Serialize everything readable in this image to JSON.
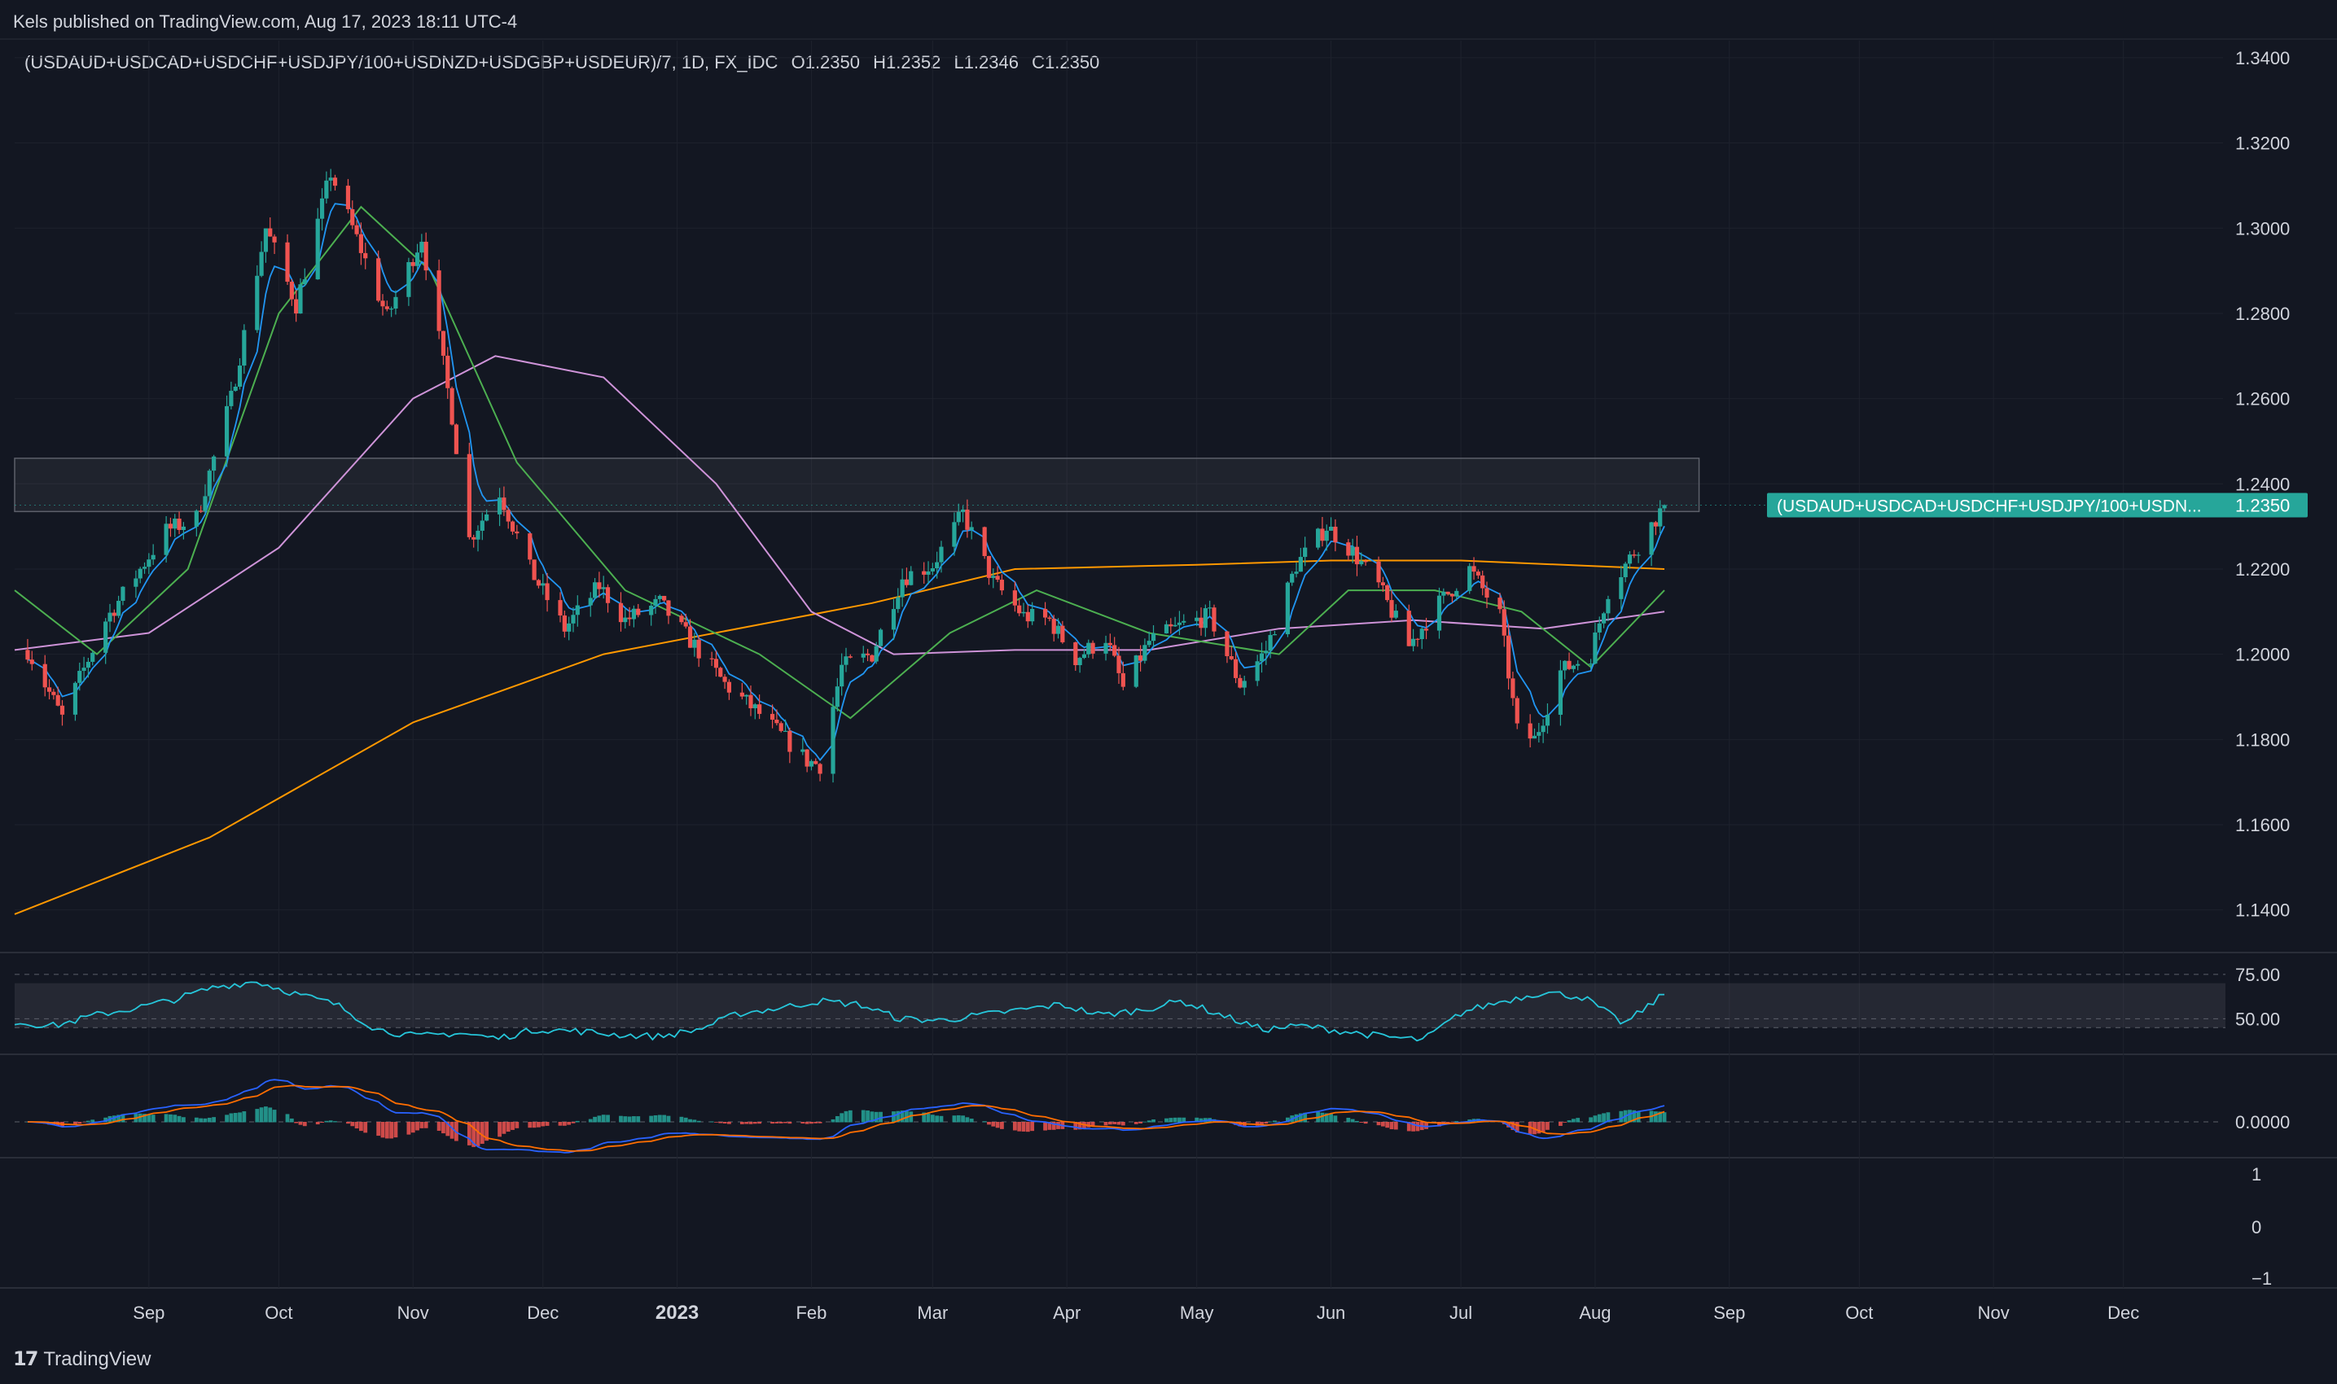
{
  "header": {
    "publisher": "Kels published on TradingView.com, Aug 17, 2023 18:11 UTC-4",
    "symbol": "(USDAUD+USDCAD+USDCHF+USDJPY/100+USDNZD+USDGBP+USDEUR)/7, 1D, FX_IDC",
    "ohlc": [
      {
        "label": "O",
        "value": "1.2350"
      },
      {
        "label": "H",
        "value": "1.2352"
      },
      {
        "label": "L",
        "value": "1.2346"
      },
      {
        "label": "C",
        "value": "1.2350"
      }
    ]
  },
  "price_label": {
    "symbol_short": "(USDAUD+USDCAD+USDCHF+USDJPY/100+USDN...",
    "value": "1.2350"
  },
  "footer": {
    "brand": "TradingView"
  },
  "colors": {
    "background": "#131722",
    "up": "#26a69a",
    "down": "#ef5350",
    "ma_fast": "#2196f3",
    "ma_mid": "#4caf50",
    "ma_slow": "#ce93d8",
    "ma_long": "#ff9800",
    "rsi": "#26c6da",
    "macd_line": "#2962ff",
    "signal_line": "#ff6d00",
    "last_price_tag": "#26a69a"
  },
  "chart_data": [
    {
      "type": "candlestick",
      "y_ticks": [
        "1.3400",
        "1.3200",
        "1.3000",
        "1.2800",
        "1.2600",
        "1.2400",
        "1.2200",
        "1.2000",
        "1.1800",
        "1.1600",
        "1.1400"
      ],
      "ylim": [
        1.13,
        1.344
      ],
      "x_ticks": [
        "Sep",
        "Oct",
        "Nov",
        "Dec",
        "2023",
        "Feb",
        "Mar",
        "Apr",
        "May",
        "Jun",
        "Jul",
        "Aug",
        "Sep",
        "Oct",
        "Nov",
        "Dec"
      ],
      "bold_x_ticks": [
        "2023"
      ],
      "swing_points": [
        [
          "2022-08-04",
          1.201
        ],
        [
          "2022-08-12",
          1.185
        ],
        [
          "2022-08-22",
          1.208
        ],
        [
          "2022-09-05",
          1.229
        ],
        [
          "2022-09-12",
          1.232
        ],
        [
          "2022-09-20",
          1.26
        ],
        [
          "2022-09-28",
          1.3
        ],
        [
          "2022-10-05",
          1.282
        ],
        [
          "2022-10-13",
          1.313
        ],
        [
          "2022-10-20",
          1.295
        ],
        [
          "2022-10-26",
          1.279
        ],
        [
          "2022-11-03",
          1.298
        ],
        [
          "2022-11-10",
          1.256
        ],
        [
          "2022-11-14",
          1.227
        ],
        [
          "2022-11-21",
          1.238
        ],
        [
          "2022-11-28",
          1.22
        ],
        [
          "2022-12-06",
          1.206
        ],
        [
          "2022-12-14",
          1.216
        ],
        [
          "2022-12-20",
          1.208
        ],
        [
          "2022-12-28",
          1.212
        ],
        [
          "2023-01-05",
          1.202
        ],
        [
          "2023-01-12",
          1.193
        ],
        [
          "2023-01-20",
          1.186
        ],
        [
          "2023-01-31",
          1.175
        ],
        [
          "2023-02-03",
          1.174
        ],
        [
          "2023-02-08",
          1.197
        ],
        [
          "2023-02-15",
          1.2
        ],
        [
          "2023-02-22",
          1.218
        ],
        [
          "2023-03-01",
          1.221
        ],
        [
          "2023-03-08",
          1.233
        ],
        [
          "2023-03-15",
          1.217
        ],
        [
          "2023-03-22",
          1.209
        ],
        [
          "2023-03-28",
          1.208
        ],
        [
          "2023-04-03",
          1.199
        ],
        [
          "2023-04-10",
          1.204
        ],
        [
          "2023-04-14",
          1.192
        ],
        [
          "2023-04-20",
          1.203
        ],
        [
          "2023-04-28",
          1.207
        ],
        [
          "2023-05-04",
          1.209
        ],
        [
          "2023-05-11",
          1.193
        ],
        [
          "2023-05-17",
          1.201
        ],
        [
          "2023-05-24",
          1.221
        ],
        [
          "2023-05-31",
          1.23
        ],
        [
          "2023-06-06",
          1.224
        ],
        [
          "2023-06-12",
          1.216
        ],
        [
          "2023-06-19",
          1.202
        ],
        [
          "2023-06-26",
          1.212
        ],
        [
          "2023-07-03",
          1.22
        ],
        [
          "2023-07-10",
          1.209
        ],
        [
          "2023-07-14",
          1.182
        ],
        [
          "2023-07-18",
          1.18
        ],
        [
          "2023-07-24",
          1.196
        ],
        [
          "2023-07-31",
          1.2
        ],
        [
          "2023-08-04",
          1.215
        ],
        [
          "2023-08-10",
          1.224
        ],
        [
          "2023-08-17",
          1.235
        ]
      ],
      "horizontal_zone": {
        "from": "2023-03-07",
        "to": "2023-08-17",
        "low": 1.2335,
        "high": 1.246
      },
      "last_price": 1.235,
      "moving_averages_approx": [
        {
          "color": "ma_long",
          "points": [
            [
              "2022-08-01",
              1.139
            ],
            [
              "2022-09-15",
              1.157
            ],
            [
              "2022-11-01",
              1.184
            ],
            [
              "2022-12-15",
              1.2
            ],
            [
              "2023-02-15",
              1.212
            ],
            [
              "2023-03-20",
              1.22
            ],
            [
              "2023-05-01",
              1.221
            ],
            [
              "2023-06-01",
              1.222
            ],
            [
              "2023-07-01",
              1.222
            ],
            [
              "2023-08-17",
              1.22
            ]
          ]
        },
        {
          "color": "ma_slow",
          "points": [
            [
              "2022-08-01",
              1.201
            ],
            [
              "2022-09-01",
              1.205
            ],
            [
              "2022-10-01",
              1.225
            ],
            [
              "2022-11-01",
              1.26
            ],
            [
              "2022-11-20",
              1.27
            ],
            [
              "2022-12-15",
              1.265
            ],
            [
              "2023-01-10",
              1.24
            ],
            [
              "2023-02-01",
              1.21
            ],
            [
              "2023-02-20",
              1.2
            ],
            [
              "2023-03-20",
              1.201
            ],
            [
              "2023-04-20",
              1.201
            ],
            [
              "2023-05-20",
              1.206
            ],
            [
              "2023-06-20",
              1.208
            ],
            [
              "2023-07-20",
              1.206
            ],
            [
              "2023-08-17",
              1.21
            ]
          ]
        },
        {
          "color": "ma_mid",
          "points": [
            [
              "2022-08-01",
              1.215
            ],
            [
              "2022-08-20",
              1.2
            ],
            [
              "2022-09-10",
              1.22
            ],
            [
              "2022-10-01",
              1.28
            ],
            [
              "2022-10-20",
              1.305
            ],
            [
              "2022-11-05",
              1.29
            ],
            [
              "2022-11-25",
              1.245
            ],
            [
              "2022-12-20",
              1.215
            ],
            [
              "2023-01-20",
              1.2
            ],
            [
              "2023-02-10",
              1.185
            ],
            [
              "2023-03-05",
              1.205
            ],
            [
              "2023-03-25",
              1.215
            ],
            [
              "2023-04-20",
              1.205
            ],
            [
              "2023-05-20",
              1.2
            ],
            [
              "2023-06-05",
              1.215
            ],
            [
              "2023-06-25",
              1.215
            ],
            [
              "2023-07-15",
              1.21
            ],
            [
              "2023-07-31",
              1.197
            ],
            [
              "2023-08-17",
              1.215
            ]
          ]
        }
      ]
    },
    {
      "type": "line",
      "name": "rsi",
      "y_ticks": [
        "75.00",
        "50.00"
      ],
      "ylim": [
        30,
        85
      ],
      "band": [
        45,
        70
      ],
      "values_approx": [
        48,
        46,
        52,
        56,
        61,
        68,
        71,
        64,
        58,
        44,
        40,
        42,
        39,
        44,
        43,
        41,
        40,
        44,
        53,
        56,
        60,
        58,
        50,
        49,
        52,
        55,
        58,
        52,
        55,
        60,
        52,
        44,
        46,
        43,
        40,
        38,
        54,
        60,
        65,
        62,
        47,
        64
      ]
    },
    {
      "type": "bar",
      "name": "macd",
      "y_ticks": [
        "0.0000"
      ],
      "note": "histogram with MACD and signal lines"
    },
    {
      "type": "line",
      "name": "pane4",
      "y_ticks": [
        "1",
        "0",
        "−1"
      ]
    }
  ]
}
